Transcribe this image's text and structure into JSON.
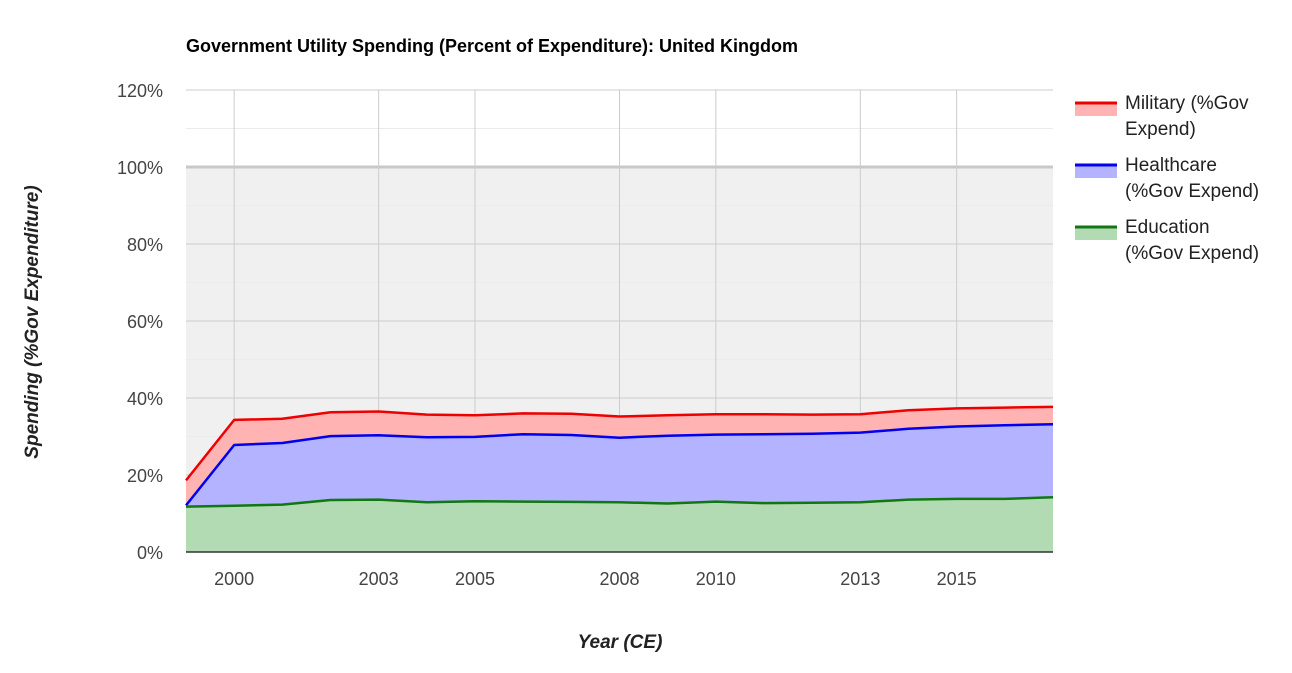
{
  "chart_data": {
    "type": "area",
    "stacked": true,
    "title": "Government Utility Spending (Percent of Expenditure): United Kingdom",
    "xlabel": "Year (CE)",
    "ylabel": "Spending (%Gov Expenditure)",
    "x_tick_labels": [
      "2000",
      "2003",
      "2005",
      "2008",
      "2010",
      "2013",
      "2015"
    ],
    "x_tick_years": [
      2000,
      2003,
      2005,
      2008,
      2010,
      2013,
      2015
    ],
    "y_tick_labels": [
      "0%",
      "20%",
      "40%",
      "60%",
      "80%",
      "100%",
      "120%"
    ],
    "ylim": [
      0,
      120
    ],
    "xlim": [
      1999,
      2017
    ],
    "grid": true,
    "legend_position": "right",
    "highlight_band": [
      0,
      100
    ],
    "x": [
      1999,
      2000,
      2001,
      2002,
      2003,
      2004,
      2005,
      2006,
      2007,
      2008,
      2009,
      2010,
      2011,
      2012,
      2013,
      2014,
      2015,
      2016,
      2017
    ],
    "series": [
      {
        "name": "Military (%Gov Expend)",
        "line_color": "#ee0000",
        "fill_color": "#ffb3b3",
        "values": [
          6.5,
          6.5,
          6.3,
          6.2,
          6.2,
          5.9,
          5.6,
          5.4,
          5.5,
          5.5,
          5.3,
          5.3,
          5.2,
          5.0,
          4.8,
          4.8,
          4.7,
          4.6,
          4.5
        ]
      },
      {
        "name": "Healthcare (%Gov Expend)",
        "line_color": "#0000ee",
        "fill_color": "#b3b3ff",
        "values": [
          0.3,
          15.8,
          16.0,
          16.6,
          16.7,
          16.9,
          16.7,
          17.5,
          17.4,
          16.8,
          17.6,
          17.4,
          17.9,
          17.9,
          18.1,
          18.4,
          18.8,
          19.1,
          19.0
        ]
      },
      {
        "name": "Education (%Gov Expend)",
        "line_color": "#117711",
        "fill_color": "#b3dbb3",
        "values": [
          11.8,
          12.0,
          12.3,
          13.5,
          13.6,
          12.9,
          13.2,
          13.1,
          13.0,
          12.9,
          12.6,
          13.1,
          12.7,
          12.8,
          12.9,
          13.6,
          13.8,
          13.8,
          14.2
        ]
      }
    ]
  }
}
